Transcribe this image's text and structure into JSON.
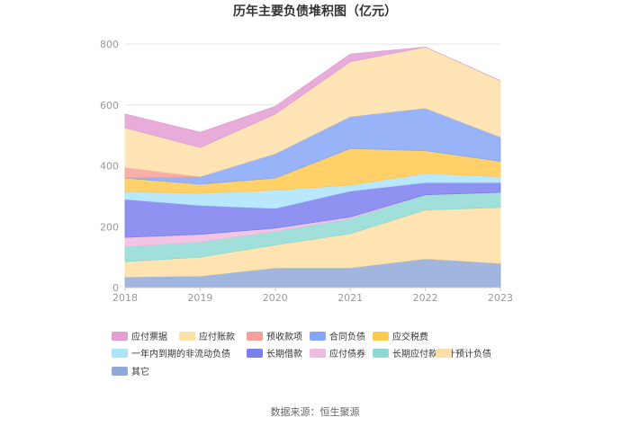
{
  "chart_data": {
    "type": "area",
    "stacked": true,
    "title": "历年主要负债堆积图（亿元）",
    "source": "数据来源：恒生聚源",
    "x": [
      "2018",
      "2019",
      "2020",
      "2021",
      "2022",
      "2023"
    ],
    "ylim": [
      0,
      800
    ],
    "yticks": [
      "0",
      "200",
      "400",
      "600",
      "800"
    ],
    "grid": true,
    "legend_position": "bottom",
    "series": [
      {
        "name": "其它",
        "color": "#8fa9d9",
        "values": [
          35,
          38,
          65,
          65,
          95,
          80
        ]
      },
      {
        "name": "预计负债",
        "color": "#ffdfa5",
        "values": [
          50,
          62,
          75,
          112,
          160,
          183
        ]
      },
      {
        "name": "长期应付款合计",
        "color": "#8fd9d4",
        "values": [
          50,
          50,
          45,
          50,
          50,
          50
        ]
      },
      {
        "name": "应付债券",
        "color": "#f0bbe0",
        "values": [
          30,
          25,
          10,
          5,
          0,
          0
        ]
      },
      {
        "name": "长期借款",
        "color": "#7b7fee",
        "values": [
          125,
          95,
          65,
          85,
          40,
          32
        ]
      },
      {
        "name": "一年内到期的非流动负债",
        "color": "#ade4fb",
        "values": [
          25,
          40,
          60,
          20,
          30,
          20
        ]
      },
      {
        "name": "应交税费",
        "color": "#ffc94d",
        "values": [
          45,
          30,
          40,
          120,
          75,
          50
        ]
      },
      {
        "name": "合同负债",
        "color": "#86a6f7",
        "values": [
          0,
          25,
          80,
          105,
          140,
          80
        ]
      },
      {
        "name": "预收款项",
        "color": "#f9a09a",
        "values": [
          35,
          0,
          0,
          0,
          0,
          0
        ]
      },
      {
        "name": "应付账款",
        "color": "#ffe0a8",
        "values": [
          130,
          95,
          130,
          180,
          200,
          185
        ]
      },
      {
        "name": "应付票据",
        "color": "#e39ed3",
        "values": [
          45,
          50,
          25,
          25,
          0,
          0
        ]
      }
    ],
    "legend_order": [
      "应付票据",
      "应付账款",
      "预收款项",
      "合同负债",
      "应交税费",
      "一年内到期的非流动负债",
      "长期借款",
      "应付债券",
      "长期应付款合计",
      "预计负债",
      "其它"
    ]
  }
}
